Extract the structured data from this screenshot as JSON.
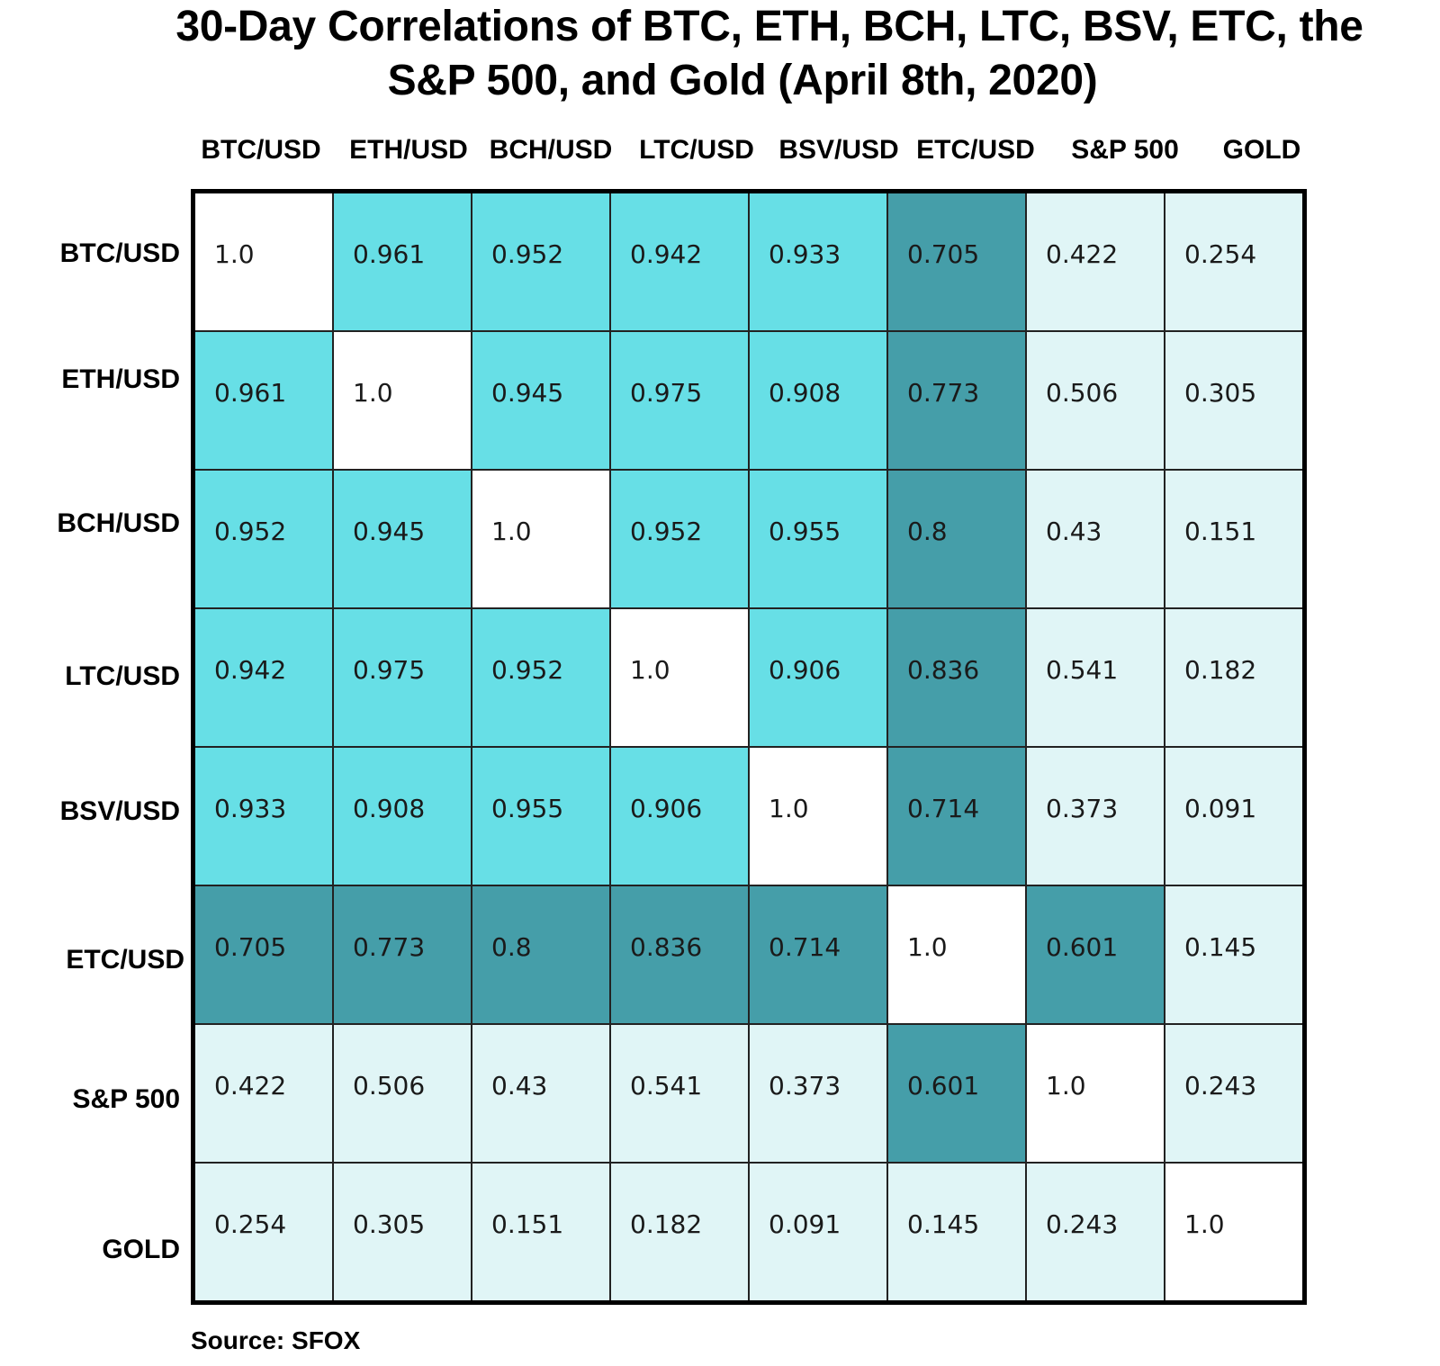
{
  "chart_data": {
    "type": "heatmap",
    "title_lines": [
      "30-Day Correlations of BTC, ETH, BCH, LTC, BSV, ETC, the",
      "S&P 500, and Gold (April 8th, 2020)"
    ],
    "x_labels": [
      "BTC/USD",
      "ETH/USD",
      "BCH/USD",
      "LTC/USD",
      "BSV/USD",
      "ETC/USD",
      "S&P 500",
      "GOLD"
    ],
    "y_labels": [
      "BTC/USD",
      "ETH/USD",
      "BCH/USD",
      "LTC/USD",
      "BSV/USD",
      "ETC/USD",
      "S&P 500",
      "GOLD"
    ],
    "cell_labels": [
      [
        "1.0",
        "0.961",
        "0.952",
        "0.942",
        "0.933",
        "0.705",
        "0.422",
        "0.254"
      ],
      [
        "0.961",
        "1.0",
        "0.945",
        "0.975",
        "0.908",
        "0.773",
        "0.506",
        "0.305"
      ],
      [
        "0.952",
        "0.945",
        "1.0",
        "0.952",
        "0.955",
        "0.8",
        "0.43",
        "0.151"
      ],
      [
        "0.942",
        "0.975",
        "0.952",
        "1.0",
        "0.906",
        "0.836",
        "0.541",
        "0.182"
      ],
      [
        "0.933",
        "0.908",
        "0.955",
        "0.906",
        "1.0",
        "0.714",
        "0.373",
        "0.091"
      ],
      [
        "0.705",
        "0.773",
        "0.8",
        "0.836",
        "0.714",
        "1.0",
        "0.601",
        "0.145"
      ],
      [
        "0.422",
        "0.506",
        "0.43",
        "0.541",
        "0.373",
        "0.601",
        "1.0",
        "0.243"
      ],
      [
        "0.254",
        "0.305",
        "0.151",
        "0.182",
        "0.091",
        "0.145",
        "0.243",
        "1.0"
      ]
    ],
    "values": [
      [
        1.0,
        0.961,
        0.952,
        0.942,
        0.933,
        0.705,
        0.422,
        0.254
      ],
      [
        0.961,
        1.0,
        0.945,
        0.975,
        0.908,
        0.773,
        0.506,
        0.305
      ],
      [
        0.952,
        0.945,
        1.0,
        0.952,
        0.955,
        0.8,
        0.43,
        0.151
      ],
      [
        0.942,
        0.975,
        0.952,
        1.0,
        0.906,
        0.836,
        0.541,
        0.182
      ],
      [
        0.933,
        0.908,
        0.955,
        0.906,
        1.0,
        0.714,
        0.373,
        0.091
      ],
      [
        0.705,
        0.773,
        0.8,
        0.836,
        0.714,
        1.0,
        0.601,
        0.145
      ],
      [
        0.422,
        0.506,
        0.43,
        0.541,
        0.373,
        0.601,
        1.0,
        0.243
      ],
      [
        0.254,
        0.305,
        0.151,
        0.182,
        0.091,
        0.145,
        0.243,
        1.0
      ]
    ],
    "colors": {
      "diagonal": "#ffffff",
      "high": "#67dfe6",
      "mid": "#459ea9",
      "low": "#e0f5f6",
      "grid": "#222222",
      "border": "#000000"
    },
    "source": "Source: SFOX"
  }
}
